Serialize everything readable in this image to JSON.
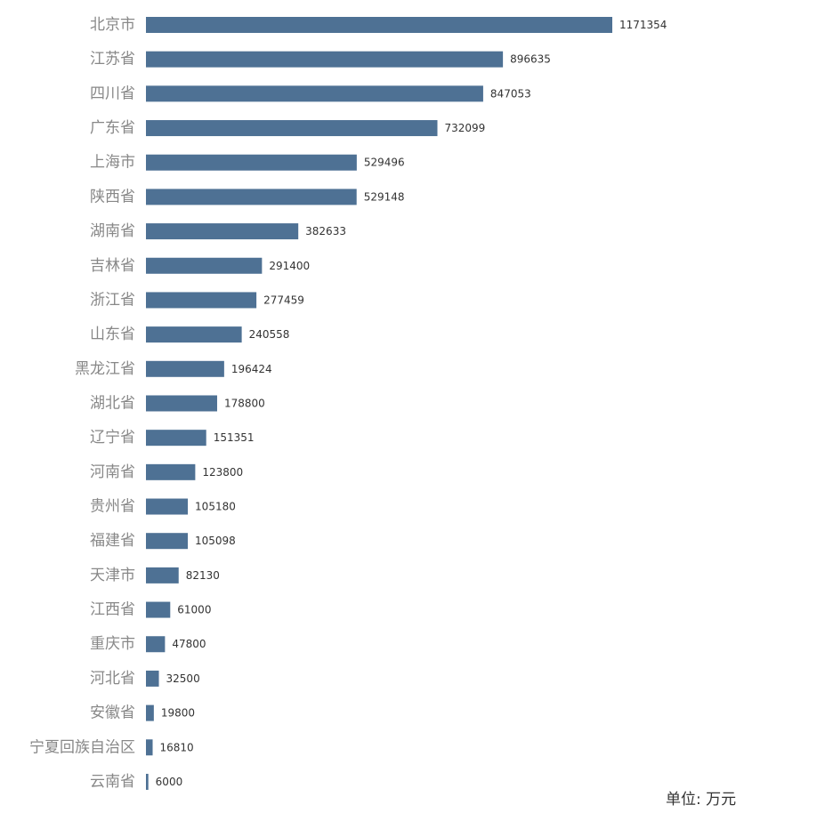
{
  "chart_data": {
    "type": "bar",
    "orientation": "horizontal",
    "categories": [
      "北京市",
      "江苏省",
      "四川省",
      "广东省",
      "上海市",
      "陕西省",
      "湖南省",
      "吉林省",
      "浙江省",
      "山东省",
      "黑龙江省",
      "湖北省",
      "辽宁省",
      "河南省",
      "贵州省",
      "福建省",
      "天津市",
      "江西省",
      "重庆市",
      "河北省",
      "安徽省",
      "宁夏回族自治区",
      "云南省"
    ],
    "values": [
      1171354,
      896635,
      847053,
      732099,
      529496,
      529148,
      382633,
      291400,
      277459,
      240558,
      196424,
      178800,
      151351,
      123800,
      105180,
      105098,
      82130,
      61000,
      47800,
      32500,
      19800,
      16810,
      6000
    ],
    "xlim": [
      0,
      1171354
    ],
    "grid": false,
    "data_labels": true,
    "bar_color": "#4e7194"
  },
  "unit_note": "单位: 万元"
}
